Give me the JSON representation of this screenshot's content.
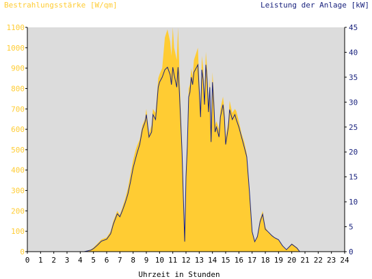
{
  "chart_data": {
    "type": "area",
    "title_left": "Bestrahlungsstärke [W/qm]",
    "title_right": "Leistung der Anlage [kW]",
    "xlabel": "Uhrzeit in Stunden",
    "x_ticks": [
      "0",
      "1",
      "2",
      "3",
      "4",
      "5",
      "6",
      "7",
      "8",
      "9",
      "10",
      "11",
      "12",
      "13",
      "14",
      "15",
      "16",
      "17",
      "18",
      "19",
      "20",
      "21",
      "22",
      "23",
      "24"
    ],
    "y_left_ticks": [
      "0",
      "100",
      "200",
      "300",
      "400",
      "500",
      "600",
      "700",
      "800",
      "900",
      "1000",
      "1100"
    ],
    "y_right_ticks": [
      "0",
      "5",
      "10",
      "15",
      "20",
      "25",
      "30",
      "35",
      "40",
      "45"
    ],
    "xlim": [
      0,
      24
    ],
    "ylim_left": [
      0,
      1100
    ],
    "ylim_right": [
      0,
      45
    ],
    "grid": false,
    "colors": {
      "left_axis": "#ffcc33",
      "right_axis": "#1a237e",
      "area_fill": "#ffcc33",
      "plot_bg": "#dcdcdc",
      "line": "#1a237e"
    },
    "series": [
      {
        "axis": "left",
        "kind": "area",
        "x": [
          0,
          4.3,
          4.8,
          5.0,
          5.3,
          5.6,
          6.0,
          6.3,
          6.5,
          6.8,
          7.0,
          7.2,
          7.4,
          7.6,
          7.8,
          8.0,
          8.2,
          8.3,
          8.5,
          8.7,
          8.9,
          9.0,
          9.2,
          9.4,
          9.5,
          9.7,
          9.9,
          10.0,
          10.2,
          10.4,
          10.6,
          10.8,
          10.9,
          11.0,
          11.1,
          11.3,
          11.4,
          11.5,
          11.6,
          11.7,
          11.8,
          11.9,
          12.0,
          12.1,
          12.2,
          12.3,
          12.4,
          12.5,
          12.6,
          12.8,
          12.9,
          13.0,
          13.1,
          13.2,
          13.3,
          13.4,
          13.5,
          13.6,
          13.7,
          13.8,
          13.9,
          14.0,
          14.1,
          14.2,
          14.3,
          14.5,
          14.6,
          14.8,
          14.9,
          15.0,
          15.2,
          15.3,
          15.5,
          15.7,
          15.8,
          16.0,
          16.2,
          16.4,
          16.6,
          16.8,
          17.0,
          17.2,
          17.4,
          17.6,
          17.8,
          18.0,
          18.2,
          18.5,
          18.7,
          19.0,
          19.3,
          19.6,
          20.0,
          20.4,
          20.6,
          21.0,
          24
        ],
        "y": [
          0,
          0,
          10,
          20,
          40,
          60,
          70,
          100,
          150,
          200,
          180,
          220,
          260,
          310,
          380,
          450,
          500,
          520,
          550,
          620,
          650,
          700,
          580,
          620,
          700,
          680,
          850,
          870,
          900,
          1050,
          1090,
          1030,
          960,
          1100,
          1000,
          940,
          1100,
          900,
          700,
          520,
          300,
          60,
          400,
          540,
          800,
          820,
          900,
          860,
          940,
          980,
          1000,
          840,
          700,
          960,
          900,
          760,
          980,
          900,
          720,
          850,
          580,
          880,
          780,
          620,
          640,
          600,
          700,
          760,
          700,
          560,
          640,
          740,
          680,
          700,
          690,
          640,
          580,
          540,
          480,
          300,
          100,
          50,
          80,
          160,
          200,
          120,
          100,
          80,
          70,
          60,
          30,
          10,
          40,
          20,
          0,
          0,
          0
        ]
      },
      {
        "axis": "right",
        "kind": "line",
        "x": [
          0,
          4.3,
          4.8,
          5.0,
          5.3,
          5.6,
          6.0,
          6.3,
          6.5,
          6.8,
          7.0,
          7.2,
          7.4,
          7.6,
          7.8,
          8.0,
          8.2,
          8.3,
          8.5,
          8.7,
          8.9,
          9.0,
          9.2,
          9.4,
          9.5,
          9.7,
          9.9,
          10.0,
          10.2,
          10.4,
          10.6,
          10.8,
          10.9,
          11.0,
          11.1,
          11.3,
          11.4,
          11.5,
          11.6,
          11.7,
          11.8,
          11.9,
          12.0,
          12.1,
          12.2,
          12.3,
          12.4,
          12.5,
          12.6,
          12.8,
          12.9,
          13.0,
          13.1,
          13.2,
          13.3,
          13.4,
          13.5,
          13.6,
          13.7,
          13.8,
          13.9,
          14.0,
          14.1,
          14.2,
          14.3,
          14.5,
          14.6,
          14.8,
          14.9,
          15.0,
          15.2,
          15.3,
          15.5,
          15.7,
          15.8,
          16.0,
          16.2,
          16.4,
          16.6,
          16.8,
          17.0,
          17.2,
          17.4,
          17.6,
          17.8,
          18.0,
          18.2,
          18.5,
          18.7,
          19.0,
          19.3,
          19.6,
          20.0,
          20.4,
          20.6,
          21.0,
          24
        ],
        "y": [
          0,
          0,
          0.3,
          0.6,
          1.3,
          2.1,
          2.5,
          3.6,
          5.5,
          7.6,
          7.0,
          8.3,
          9.8,
          11.5,
          14.0,
          16.8,
          18.8,
          19.8,
          21.5,
          24.5,
          26.0,
          27.5,
          23.0,
          24.0,
          27.5,
          26.5,
          33.0,
          34.0,
          35.0,
          36.5,
          37.0,
          35.5,
          33.5,
          37.0,
          35.5,
          33.0,
          37.0,
          32.0,
          26.0,
          20.0,
          11.0,
          2.0,
          15.0,
          21.0,
          31.0,
          32.0,
          35.0,
          33.5,
          36.0,
          37.0,
          37.5,
          32.5,
          27.0,
          36.5,
          34.5,
          29.5,
          37.5,
          34.5,
          28.0,
          33.0,
          22.0,
          34.0,
          30.0,
          24.0,
          25.0,
          23.0,
          27.0,
          29.5,
          27.0,
          21.5,
          25.0,
          28.5,
          26.5,
          27.5,
          26.5,
          25.0,
          23.0,
          21.0,
          19.0,
          12.0,
          4.0,
          2.0,
          3.0,
          6.0,
          7.5,
          4.5,
          4.0,
          3.2,
          2.8,
          2.4,
          1.2,
          0.4,
          1.5,
          0.7,
          0,
          0,
          0
        ]
      }
    ]
  }
}
